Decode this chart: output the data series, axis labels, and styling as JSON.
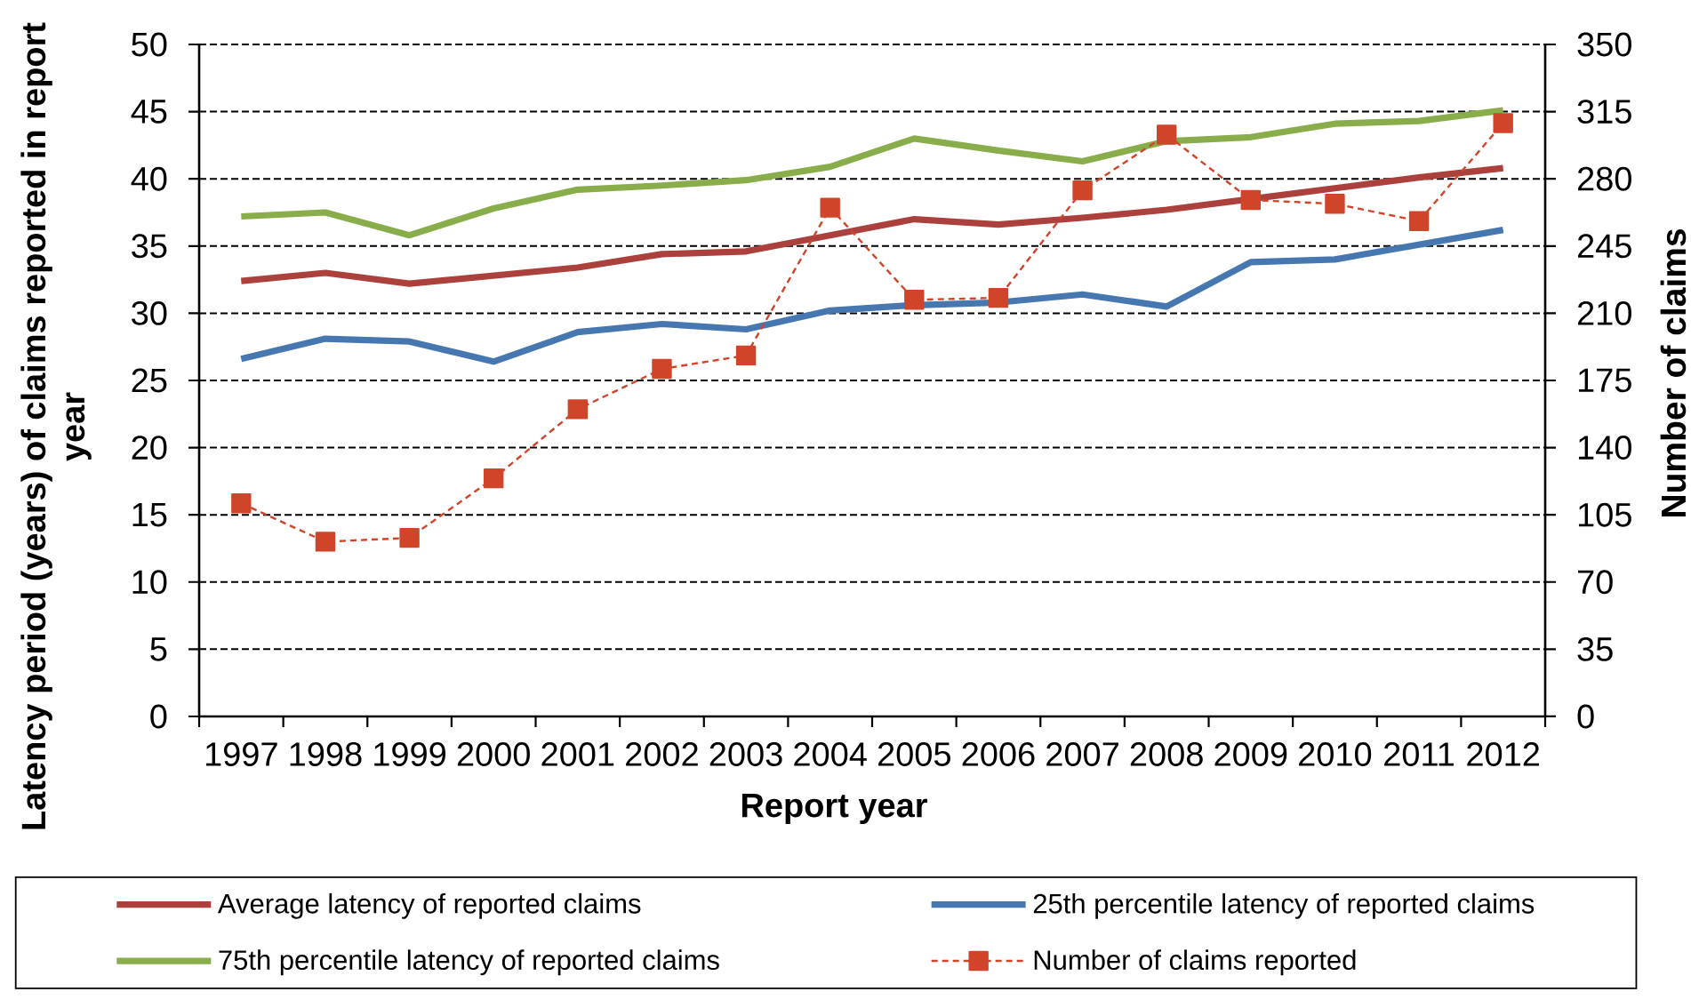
{
  "chart_data": {
    "type": "line",
    "xlabel": "Report year",
    "ylabel": "Latency period (years) of claims reported in report year",
    "y2label": "Number of claims",
    "categories": [
      "1997",
      "1998",
      "1999",
      "2000",
      "2001",
      "2002",
      "2003",
      "2004",
      "2005",
      "2006",
      "2007",
      "2008",
      "2009",
      "2010",
      "2011",
      "2012"
    ],
    "ylim": [
      0,
      50
    ],
    "yticks": [
      0,
      5,
      10,
      15,
      20,
      25,
      30,
      35,
      40,
      45,
      50
    ],
    "y2lim": [
      0,
      350
    ],
    "y2ticks": [
      0,
      35,
      70,
      105,
      140,
      175,
      210,
      245,
      280,
      315,
      350
    ],
    "grid": "y",
    "legend": "bottom",
    "series": [
      {
        "name": "Average latency of reported claims",
        "color": "#ab403d",
        "line_style": "solid",
        "marker": "none",
        "values": [
          32.4,
          33.0,
          32.2,
          32.8,
          33.4,
          34.4,
          34.6,
          35.8,
          37.0,
          36.6,
          37.1,
          37.7,
          38.5,
          39.3,
          40.1,
          40.8
        ]
      },
      {
        "name": "25th percentile latency of reported claims",
        "color": "#4777b0",
        "line_style": "solid",
        "marker": "none",
        "values": [
          26.6,
          28.1,
          27.9,
          26.4,
          28.6,
          29.2,
          28.8,
          30.2,
          30.6,
          30.8,
          31.4,
          30.5,
          33.8,
          34.0,
          35.1,
          36.2
        ]
      },
      {
        "name": "75th percentile latency of reported claims",
        "color": "#8aad4b",
        "line_style": "solid",
        "marker": "none",
        "values": [
          37.2,
          37.5,
          35.8,
          37.8,
          39.2,
          39.5,
          39.9,
          40.9,
          43.0,
          42.1,
          41.3,
          42.8,
          43.1,
          44.1,
          44.3,
          45.1
        ]
      },
      {
        "name": "Number of claims  reported",
        "color": "#d0452a",
        "line_style": "dashed",
        "marker": "square",
        "axis": "y2",
        "values": [
          111,
          91,
          93,
          124,
          160,
          181,
          188,
          265,
          217,
          218,
          274,
          303,
          269,
          267,
          258,
          309
        ]
      }
    ]
  }
}
